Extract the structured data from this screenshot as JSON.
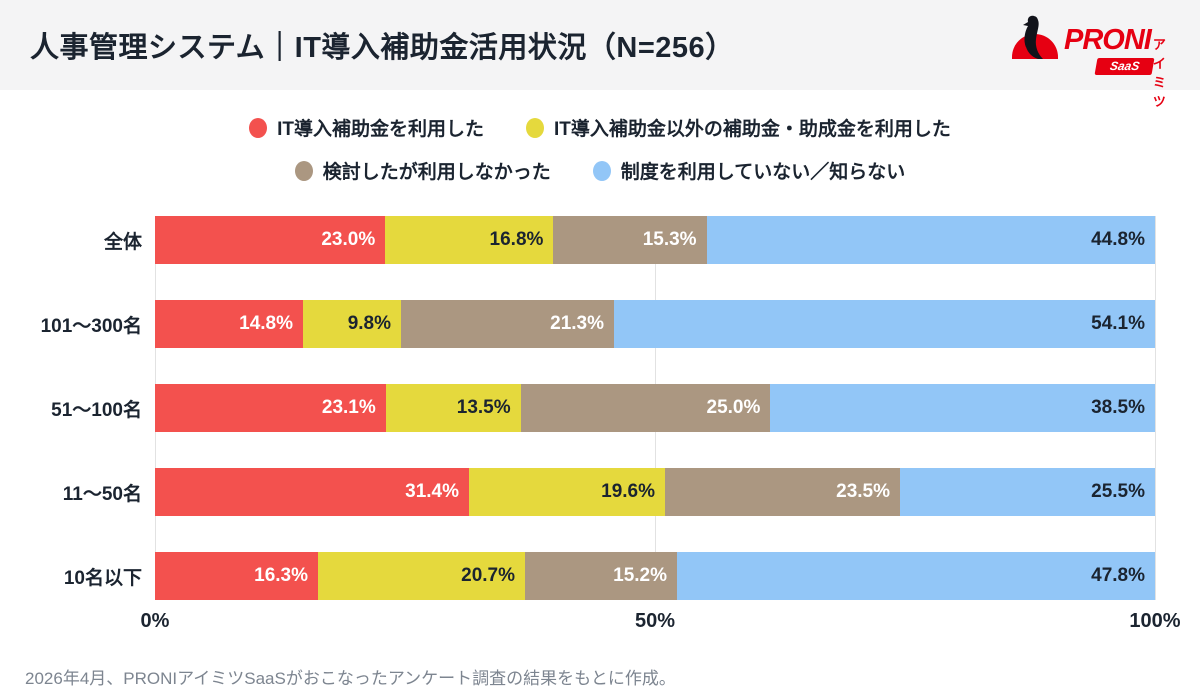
{
  "header": {
    "title": "人事管理システム｜IT導入補助金活用状況（N=256）"
  },
  "logo": {
    "brand": "PRONI",
    "sub": "アイミツ",
    "badge": "SaaS",
    "brand_color": "#e60012"
  },
  "chart_data": {
    "type": "bar",
    "variant": "horizontal-stacked-100pct",
    "title": "人事管理システム｜IT導入補助金活用状況（N=256）",
    "categories": [
      "全体",
      "101〜300名",
      "51〜100名",
      "11〜50名",
      "10名以下"
    ],
    "series": [
      {
        "name": "IT導入補助金を利用した",
        "color": "#f3514e",
        "label_color": "#ffffff",
        "values": [
          23.0,
          14.8,
          23.1,
          31.4,
          16.3
        ]
      },
      {
        "name": "IT導入補助金以外の補助金・助成金を利用した",
        "color": "#e5d93d",
        "label_color": "#1b2430",
        "values": [
          16.8,
          9.8,
          13.5,
          19.6,
          20.7
        ]
      },
      {
        "name": "検討したが利用しなかった",
        "color": "#ab9781",
        "label_color": "#ffffff",
        "values": [
          15.3,
          21.3,
          25.0,
          23.5,
          15.2
        ]
      },
      {
        "name": "制度を利用していない／知らない",
        "color": "#92c6f7",
        "label_color": "#1b2430",
        "values": [
          44.8,
          54.1,
          38.5,
          25.5,
          47.8
        ]
      }
    ],
    "legend_rows": [
      [
        0,
        1
      ],
      [
        2,
        3
      ]
    ],
    "x_axis": {
      "ticks": [
        {
          "label": "0%",
          "pos": 0
        },
        {
          "label": "50%",
          "pos": 50
        },
        {
          "label": "100%",
          "pos": 100
        }
      ],
      "range": [
        0,
        100
      ]
    },
    "grid": true,
    "value_suffix": "%"
  },
  "footer": {
    "note": "2026年4月、PRONIアイミツSaaSがおこなったアンケート調査の結果をもとに作成。"
  }
}
